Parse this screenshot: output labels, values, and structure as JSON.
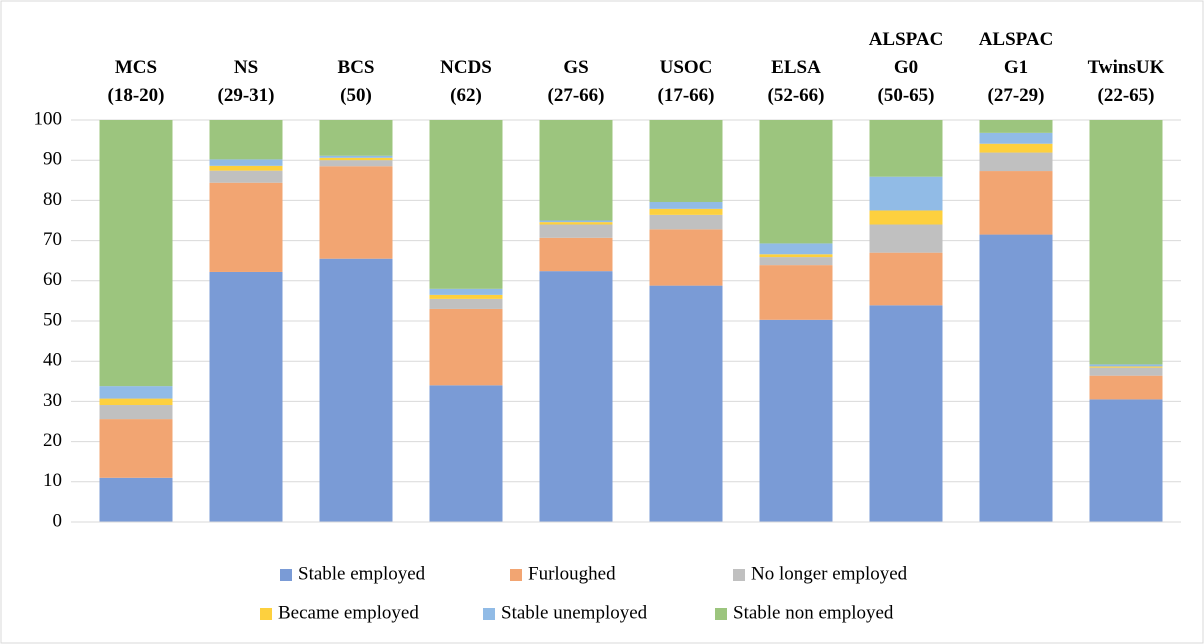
{
  "chart_data": {
    "type": "stacked_bar",
    "categories": [
      "MCS (18-20)",
      "NS (29-31)",
      "BCS (50)",
      "NCDS (62)",
      "GS (27-66)",
      "USOC (17-66)",
      "ELSA (52-66)",
      "ALSPAC G0 (50-65)",
      "ALSPAC G1 (27-29)",
      "TwinsUK (22-65)"
    ],
    "series": [
      {
        "name": "Stable employed",
        "color": "#7a9bd6",
        "values": [
          11,
          62.2,
          65.5,
          34,
          62.4,
          58.8,
          50.3,
          53.9,
          71.5,
          30.5
        ]
      },
      {
        "name": "Furloughed",
        "color": "#f2a572",
        "values": [
          14.6,
          22.2,
          23,
          19,
          8.3,
          14,
          13.6,
          13.1,
          15.8,
          5.9
        ]
      },
      {
        "name": "No longer employed",
        "color": "#c0c0c0",
        "values": [
          3.5,
          3,
          1.5,
          2.5,
          3.3,
          3.6,
          2,
          7,
          4.6,
          2
        ]
      },
      {
        "name": "Became employed",
        "color": "#fdd03e",
        "values": [
          1.6,
          1.2,
          0.6,
          1,
          0.6,
          1.5,
          0.7,
          3.5,
          2.2,
          0.3
        ]
      },
      {
        "name": "Stable unemployed",
        "color": "#91bbe6",
        "values": [
          3.1,
          1.6,
          0.5,
          1.5,
          0.4,
          1.7,
          2.7,
          8.4,
          2.7,
          0.5
        ]
      },
      {
        "name": "Stable non employed",
        "color": "#9cc57e",
        "values": [
          66.2,
          9.8,
          8.9,
          42,
          25,
          20.4,
          30.7,
          14.1,
          3.2,
          60.8
        ]
      }
    ],
    "ylim": [
      0,
      100
    ],
    "yticks": [
      0,
      10,
      20,
      30,
      40,
      50,
      60,
      70,
      80,
      90,
      100
    ],
    "grid": true,
    "legend": "bottom"
  }
}
